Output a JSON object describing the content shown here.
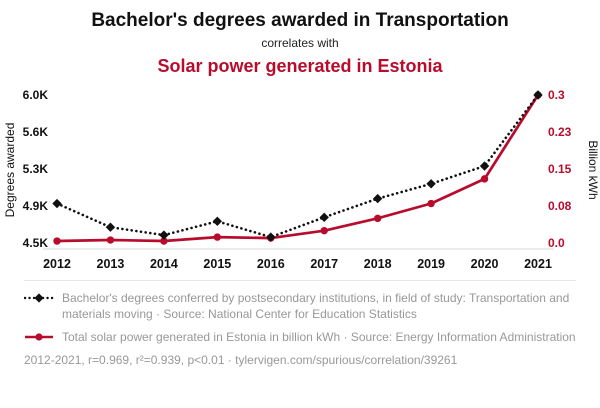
{
  "header": {
    "title": "Bachelor's degrees awarded in Transportation",
    "connector": "correlates with",
    "subtitle": "Solar power generated in Estonia"
  },
  "colors": {
    "accent_red": "#b80c2c",
    "series_black": "#111111",
    "legend_gray": "#98989a",
    "axis_line": "#d8d8d8"
  },
  "chart_data": {
    "type": "line",
    "x": [
      "2012",
      "2013",
      "2014",
      "2015",
      "2016",
      "2017",
      "2018",
      "2019",
      "2020",
      "2021"
    ],
    "series": [
      {
        "name": "Bachelor's degrees conferred in Transportation and materials moving",
        "axis": "left",
        "color": "#111111",
        "style": "dotted",
        "marker": "diamond",
        "values": [
          4900,
          4660,
          4580,
          4720,
          4560,
          4760,
          4950,
          5100,
          5280,
          6000
        ]
      },
      {
        "name": "Total solar power generated in Estonia",
        "axis": "right",
        "color": "#b80c2c",
        "style": "solid",
        "marker": "circle",
        "values": [
          0.004,
          0.006,
          0.004,
          0.012,
          0.01,
          0.025,
          0.05,
          0.08,
          0.13,
          0.3
        ]
      }
    ],
    "left_axis": {
      "label": "Degrees awarded",
      "min": 4500,
      "max": 6000,
      "ticks": [
        "4.5K",
        "4.9K",
        "5.3K",
        "5.6K",
        "6.0K"
      ]
    },
    "right_axis": {
      "label": "Billion kWh",
      "min": 0,
      "max": 0.3,
      "ticks": [
        "0.0",
        "0.08",
        "0.15",
        "0.23",
        "0.3"
      ]
    },
    "grid": false,
    "legend_position": "bottom"
  },
  "legend": {
    "series1": "Bachelor's degrees conferred by postsecondary institutions, in field of study: Transportation and materials moving · Source: National Center for Education Statistics",
    "series2": "Total solar power generated in Estonia in billion kWh · Source: Energy Information Administration",
    "footer": "2012-2021, r=0.969, r²=0.939, p<0.01 · tylervigen.com/spurious/correlation/39261"
  }
}
